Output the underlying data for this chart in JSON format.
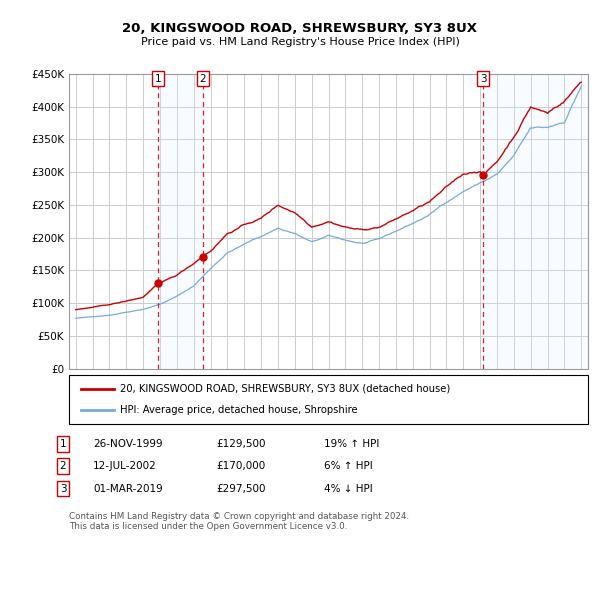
{
  "title": "20, KINGSWOOD ROAD, SHREWSBURY, SY3 8UX",
  "subtitle": "Price paid vs. HM Land Registry's House Price Index (HPI)",
  "ylim": [
    0,
    450000
  ],
  "yticks": [
    0,
    50000,
    100000,
    150000,
    200000,
    250000,
    300000,
    350000,
    400000,
    450000
  ],
  "ytick_labels": [
    "£0",
    "£50K",
    "£100K",
    "£150K",
    "£200K",
    "£250K",
    "£300K",
    "£350K",
    "£400K",
    "£450K"
  ],
  "xlim_start": 1994.6,
  "xlim_end": 2025.4,
  "grid_color": "#cccccc",
  "transactions": [
    {
      "num": 1,
      "date": "26-NOV-1999",
      "price": "£129,500",
      "pct": "19% ↑ HPI",
      "year": 1999.9
    },
    {
      "num": 2,
      "date": "12-JUL-2002",
      "price": "£170,000",
      "pct": "6% ↑ HPI",
      "year": 2002.54
    },
    {
      "num": 3,
      "date": "01-MAR-2019",
      "price": "£297,500",
      "pct": "4% ↓ HPI",
      "year": 2019.17
    }
  ],
  "legend_line1": "20, KINGSWOOD ROAD, SHREWSBURY, SY3 8UX (detached house)",
  "legend_line2": "HPI: Average price, detached house, Shropshire",
  "footnote": "Contains HM Land Registry data © Crown copyright and database right 2024.\nThis data is licensed under the Open Government Licence v3.0.",
  "red_color": "#cc0000",
  "blue_color": "#77aadd",
  "shade_color": "#ddeeff"
}
